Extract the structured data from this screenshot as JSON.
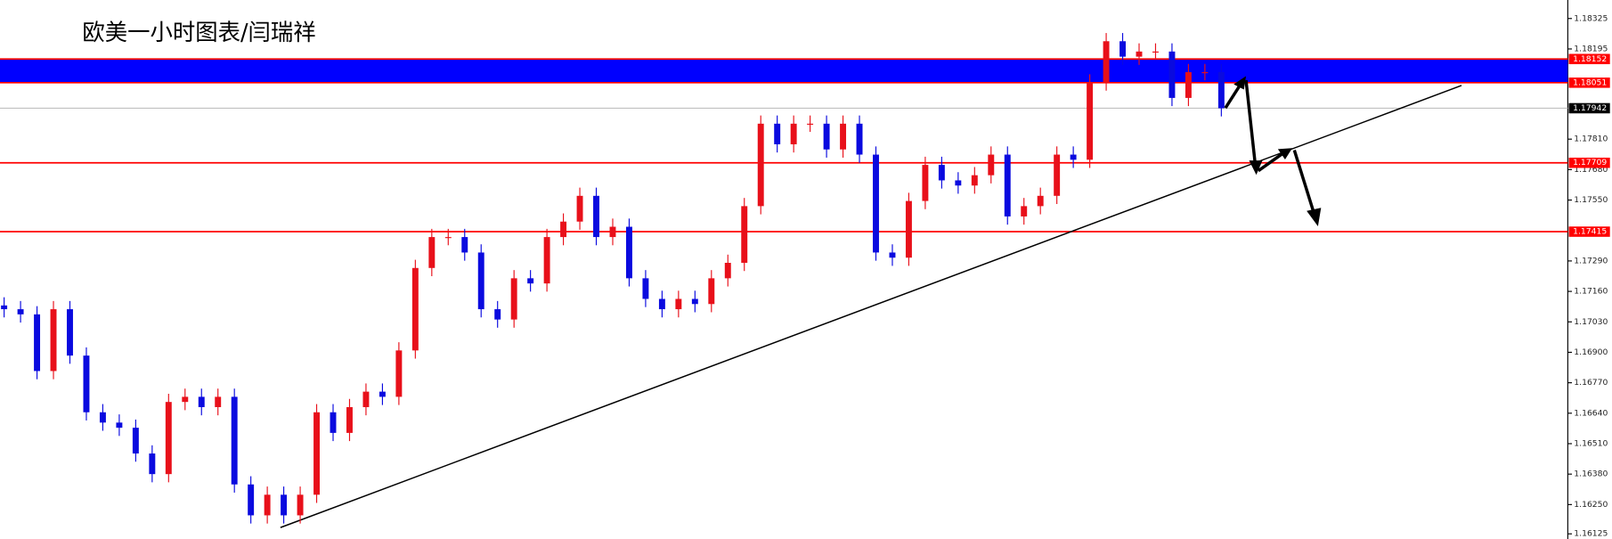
{
  "chart_data": {
    "type": "candlestick",
    "title": "欧美一小时图表/闫瑞祥",
    "up_color": "#e8101a",
    "down_color": "#0a0adf",
    "ylim": [
      1.16103,
      1.18404
    ],
    "yticks": [
      1.18325,
      1.18195,
      {
        "value": 1.1781,
        "label": "1.17810"
      },
      {
        "value": 1.1768,
        "label": "1.17680"
      },
      {
        "value": 1.1755,
        "label": "1.17550"
      },
      {
        "value": 1.1729,
        "label": "1.17290"
      },
      {
        "value": 1.1716,
        "label": "1.17160"
      },
      {
        "value": 1.1703,
        "label": "1.17030"
      },
      {
        "value": 1.169,
        "label": "1.16900"
      },
      {
        "value": 1.1677,
        "label": "1.16770"
      },
      {
        "value": 1.1664,
        "label": "1.16640"
      },
      {
        "value": 1.1651,
        "label": "1.16510"
      },
      {
        "value": 1.1638,
        "label": "1.16380"
      },
      {
        "value": 1.1625,
        "label": "1.16250"
      },
      1.16125
    ],
    "open": [
      1.171,
      1.17084,
      1.17062,
      1.1682,
      1.17084,
      1.16886,
      1.16644,
      1.166,
      1.16578,
      1.16468,
      1.1638,
      1.16688,
      1.1671,
      1.16666,
      1.1671,
      1.16336,
      1.16204,
      1.16292,
      1.16204,
      1.16292,
      1.16644,
      1.16556,
      1.16666,
      1.16732,
      1.1671,
      1.16908,
      1.1726,
      1.17392,
      1.17392,
      1.17326,
      1.17084,
      1.1704,
      1.17216,
      1.17194,
      1.17392,
      1.17458,
      1.17568,
      1.17392,
      1.17436,
      1.17216,
      1.17128,
      1.17084,
      1.17128,
      1.17106,
      1.17216,
      1.17282,
      1.17524,
      1.17876,
      1.17788,
      1.17876,
      1.17876,
      1.17766,
      1.17876,
      1.17744,
      1.17326,
      1.17304,
      1.17546,
      1.177,
      1.17634,
      1.17612,
      1.17656,
      1.17744,
      1.1748,
      1.17524,
      1.17568,
      1.17744,
      1.17722,
      1.18052,
      1.18228,
      1.18162,
      1.18184,
      1.18184,
      1.17986,
      1.18096,
      1.18096
    ],
    "high": [
      1.17135,
      1.17119,
      1.17097,
      1.17119,
      1.17119,
      1.16921,
      1.16679,
      1.16635,
      1.16613,
      1.16503,
      1.16723,
      1.16745,
      1.16745,
      1.16745,
      1.16745,
      1.16371,
      1.16327,
      1.16327,
      1.16327,
      1.16679,
      1.16679,
      1.16701,
      1.16767,
      1.16767,
      1.16943,
      1.17295,
      1.17427,
      1.17427,
      1.17427,
      1.17361,
      1.17119,
      1.17251,
      1.17251,
      1.17427,
      1.17493,
      1.17603,
      1.17603,
      1.17471,
      1.17471,
      1.17251,
      1.17163,
      1.17163,
      1.17163,
      1.17251,
      1.17317,
      1.17559,
      1.17911,
      1.17911,
      1.17911,
      1.17911,
      1.17911,
      1.17911,
      1.17911,
      1.17779,
      1.17361,
      1.17581,
      1.17735,
      1.17735,
      1.17669,
      1.17691,
      1.17779,
      1.17779,
      1.17559,
      1.17603,
      1.17779,
      1.17779,
      1.18087,
      1.18263,
      1.18263,
      1.18219,
      1.18219,
      1.18219,
      1.18131,
      1.18131,
      1.18131
    ],
    "low": [
      1.17049,
      1.17027,
      1.16785,
      1.16785,
      1.16851,
      1.16609,
      1.16565,
      1.16543,
      1.16433,
      1.16345,
      1.16345,
      1.16653,
      1.16631,
      1.16631,
      1.16301,
      1.16169,
      1.16169,
      1.16169,
      1.16169,
      1.16257,
      1.16521,
      1.16521,
      1.16631,
      1.16675,
      1.16675,
      1.16873,
      1.17225,
      1.17357,
      1.17291,
      1.17049,
      1.17005,
      1.17005,
      1.17159,
      1.17159,
      1.17357,
      1.17423,
      1.17357,
      1.17357,
      1.17181,
      1.17093,
      1.17049,
      1.17049,
      1.17071,
      1.17071,
      1.17181,
      1.17247,
      1.17489,
      1.17753,
      1.17753,
      1.17841,
      1.17731,
      1.17731,
      1.17709,
      1.17291,
      1.17269,
      1.17269,
      1.17511,
      1.17599,
      1.17577,
      1.17577,
      1.17621,
      1.17445,
      1.17445,
      1.17489,
      1.17533,
      1.17687,
      1.17687,
      1.18017,
      1.18127,
      1.18127,
      1.18149,
      1.17951,
      1.17951,
      1.18061,
      1.17907
    ],
    "close": [
      1.17084,
      1.17062,
      1.1682,
      1.17084,
      1.16886,
      1.16644,
      1.166,
      1.16578,
      1.16468,
      1.1638,
      1.16688,
      1.1671,
      1.16666,
      1.1671,
      1.16336,
      1.16204,
      1.16292,
      1.16204,
      1.16292,
      1.16644,
      1.16556,
      1.16666,
      1.16732,
      1.1671,
      1.16908,
      1.1726,
      1.17392,
      1.17392,
      1.17326,
      1.17084,
      1.1704,
      1.17216,
      1.17194,
      1.17392,
      1.17458,
      1.17568,
      1.17392,
      1.17436,
      1.17216,
      1.17128,
      1.17084,
      1.17128,
      1.17106,
      1.17216,
      1.17282,
      1.17524,
      1.17876,
      1.17788,
      1.17876,
      1.17876,
      1.17766,
      1.17876,
      1.17744,
      1.17326,
      1.17304,
      1.17546,
      1.177,
      1.17634,
      1.17612,
      1.17656,
      1.17744,
      1.1748,
      1.17524,
      1.17568,
      1.17744,
      1.17722,
      1.18052,
      1.18228,
      1.18162,
      1.18184,
      1.18184,
      1.17986,
      1.18096,
      1.18096,
      1.17942
    ],
    "zone": {
      "from": 1.18051,
      "to": 1.18152,
      "color": "#0000ff",
      "edge_color": "#ff0000"
    },
    "levels": [
      {
        "value": 1.17942,
        "color": "#c0c0c0",
        "label_color": "#000000"
      },
      {
        "value": 1.17709,
        "color": "#ff0000",
        "label_color": "#ff0000"
      },
      {
        "value": 1.17415,
        "color": "#ff0000",
        "label_color": "#ff0000"
      }
    ],
    "trendline": {
      "x": [
        16.8,
        88.6
      ],
      "y": [
        1.16152,
        1.18039
      ],
      "color": "#000000"
    }
  }
}
